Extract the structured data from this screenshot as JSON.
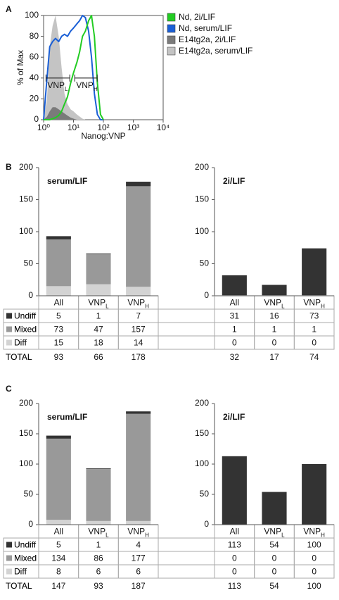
{
  "panel_labels": [
    "A",
    "B",
    "C"
  ],
  "chart_data": [
    {
      "type": "line",
      "xlabel": "Nanog:VNP",
      "ylabel": "% of Max",
      "log_x": true,
      "xlim": [
        1,
        10000
      ],
      "xticks": [
        {
          "value": 1,
          "label": "10⁰"
        },
        {
          "value": 10,
          "label": "10¹"
        },
        {
          "value": 100,
          "label": "10²"
        },
        {
          "value": 1000,
          "label": "10³"
        },
        {
          "value": 10000,
          "label": "10⁴"
        }
      ],
      "ylim": [
        0,
        100
      ],
      "yticks": [
        0,
        20,
        40,
        60,
        80,
        100
      ],
      "legend": "right",
      "x": [
        1,
        1.3,
        1.6,
        2,
        2.5,
        3.2,
        4,
        5,
        6.3,
        8,
        10,
        13,
        16,
        20,
        25,
        32,
        40,
        50,
        63,
        80,
        100
      ],
      "series": [
        {
          "name": "Nd, 2i/LIF",
          "color": "#22cc22",
          "filled": false,
          "values": [
            0,
            0,
            0,
            1,
            2,
            4,
            8,
            15,
            22,
            35,
            45,
            55,
            65,
            80,
            85,
            95,
            100,
            80,
            35,
            5,
            0
          ]
        },
        {
          "name": "Nd, serum/LIF",
          "color": "#1a5fd6",
          "filled": false,
          "values": [
            0,
            40,
            70,
            75,
            78,
            75,
            80,
            82,
            80,
            85,
            88,
            92,
            95,
            100,
            98,
            85,
            60,
            25,
            5,
            0,
            0
          ]
        },
        {
          "name": "E14tg2a, 2i/LIF",
          "color": "#7a7a7a",
          "filled": true,
          "values": [
            0,
            3,
            8,
            12,
            12,
            10,
            8,
            6,
            4,
            2,
            1,
            0,
            0,
            0,
            0,
            0,
            0,
            0,
            0,
            0,
            0
          ]
        },
        {
          "name": "E14tg2a, serum/LIF",
          "color": "#c4c4c4",
          "filled": true,
          "values": [
            0,
            20,
            70,
            90,
            100,
            80,
            50,
            25,
            15,
            10,
            8,
            5,
            3,
            1,
            0,
            0,
            0,
            0,
            0,
            0,
            0
          ]
        }
      ],
      "gates": [
        {
          "label": "VNP",
          "sub": "L",
          "x": [
            1.2,
            7.5
          ],
          "y": 40
        },
        {
          "label": "VNP",
          "sub": "H",
          "x": [
            11,
            62
          ],
          "y": 40
        }
      ]
    },
    {
      "type": "bar",
      "stacked": true,
      "title": "serum/LIF",
      "categories": [
        "All",
        "VNP",
        "VNP"
      ],
      "category_subscripts": [
        null,
        "L",
        "H"
      ],
      "ylim": [
        0,
        200
      ],
      "yticks": [
        0,
        50,
        100,
        150,
        200
      ],
      "series": [
        {
          "name": "Undiff",
          "color": "#333333",
          "values": [
            5,
            1,
            7
          ]
        },
        {
          "name": "Mixed",
          "color": "#999999",
          "values": [
            73,
            47,
            157
          ]
        },
        {
          "name": "Diff",
          "color": "#d3d3d3",
          "values": [
            15,
            18,
            14
          ]
        }
      ],
      "total_label": "TOTAL",
      "totals": [
        93,
        66,
        178
      ]
    },
    {
      "type": "bar",
      "stacked": true,
      "title": "2i/LIF",
      "categories": [
        "All",
        "VNP",
        "VNP"
      ],
      "category_subscripts": [
        null,
        "L",
        "H"
      ],
      "ylim": [
        0,
        200
      ],
      "yticks": [
        0,
        50,
        100,
        150,
        200
      ],
      "series": [
        {
          "name": "Undiff",
          "color": "#333333",
          "values": [
            31,
            16,
            73
          ]
        },
        {
          "name": "Mixed",
          "color": "#999999",
          "values": [
            1,
            1,
            1
          ]
        },
        {
          "name": "Diff",
          "color": "#d3d3d3",
          "values": [
            0,
            0,
            0
          ]
        }
      ],
      "total_label": "TOTAL",
      "totals": [
        32,
        17,
        74
      ]
    },
    {
      "type": "bar",
      "stacked": true,
      "title": "serum/LIF",
      "categories": [
        "All",
        "VNP",
        "VNP"
      ],
      "category_subscripts": [
        null,
        "L",
        "H"
      ],
      "ylim": [
        0,
        200
      ],
      "yticks": [
        0,
        50,
        100,
        150,
        200
      ],
      "series": [
        {
          "name": "Undiff",
          "color": "#333333",
          "values": [
            5,
            1,
            4
          ]
        },
        {
          "name": "Mixed",
          "color": "#999999",
          "values": [
            134,
            86,
            177
          ]
        },
        {
          "name": "Diff",
          "color": "#d3d3d3",
          "values": [
            8,
            6,
            6
          ]
        }
      ],
      "total_label": "TOTAL",
      "totals": [
        147,
        93,
        187
      ]
    },
    {
      "type": "bar",
      "stacked": true,
      "title": "2i/LIF",
      "categories": [
        "All",
        "VNP",
        "VNP"
      ],
      "category_subscripts": [
        null,
        "L",
        "H"
      ],
      "ylim": [
        0,
        200
      ],
      "yticks": [
        0,
        50,
        100,
        150,
        200
      ],
      "series": [
        {
          "name": "Undiff",
          "color": "#333333",
          "values": [
            113,
            54,
            100
          ]
        },
        {
          "name": "Mixed",
          "color": "#999999",
          "values": [
            0,
            0,
            0
          ]
        },
        {
          "name": "Diff",
          "color": "#d3d3d3",
          "values": [
            0,
            0,
            0
          ]
        }
      ],
      "total_label": "TOTAL",
      "totals": [
        113,
        54,
        100
      ]
    }
  ]
}
